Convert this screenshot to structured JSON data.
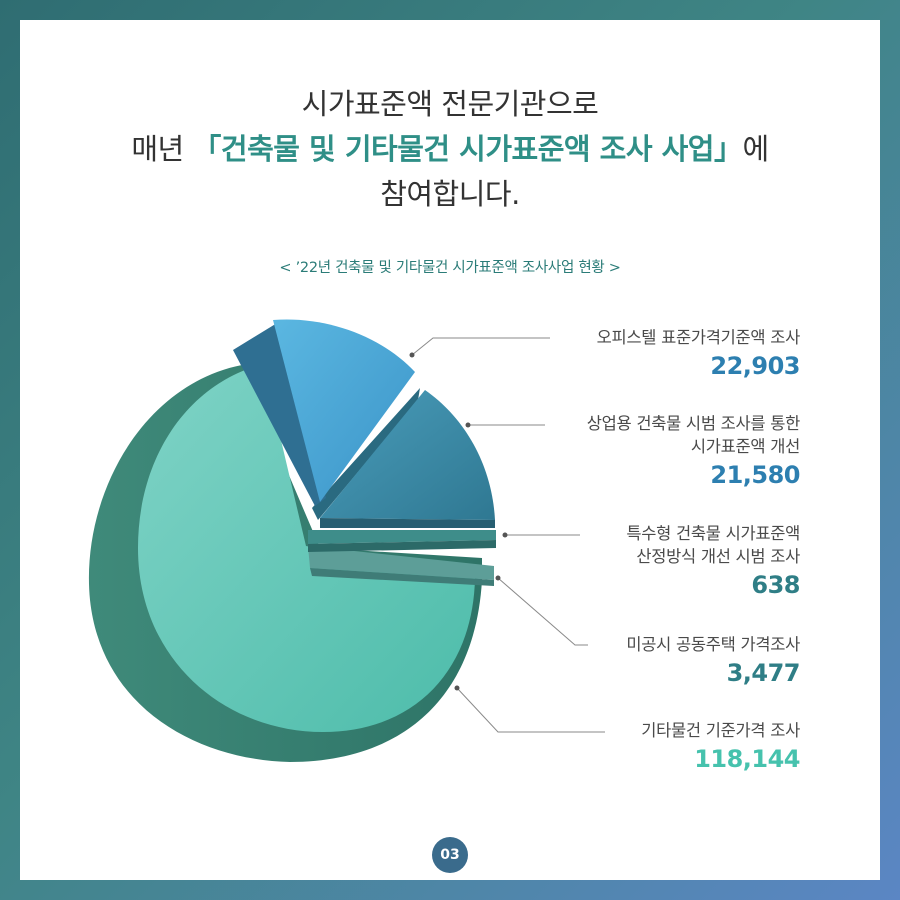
{
  "headline": {
    "line1": "시가표준액 전문기관으로",
    "line2_pre": "매년 ",
    "line2_emph": "「건축물 및 기타물건 시가표준액 조사 사업」",
    "line2_post": "에",
    "line3": "참여합니다."
  },
  "subtitle": "< ’22년 건축물 및 기타물건 시가표준액 조사사업 현황 >",
  "page_number": "03",
  "colors": {
    "accent": "#2f8f87",
    "slice_big": "#5cc5b4",
    "slice_blue": "#4aa6d6",
    "slice_steel": "#3b8aa3",
    "slice_teal_small": "#3e8d8a",
    "slice_grey_small": "#5d9e98",
    "number_blue": "#2d7fb0",
    "number_teal": "#2f7e86",
    "number_mint": "#46c2ad"
  },
  "chart_data": {
    "type": "pie",
    "title": "< ’22년 건축물 및 기타물건 시가표준액 조사사업 현황 >",
    "style": "exploded 3D pie",
    "slices": [
      {
        "label": "오피스텔 표준가격기준액 조사",
        "value": 22903,
        "display": "22,903"
      },
      {
        "label_lines": [
          "상업용 건축물 시범 조사를 통한",
          "시가표준액 개선"
        ],
        "label": "상업용 건축물 시범 조사를 통한 시가표준액 개선",
        "value": 21580,
        "display": "21,580"
      },
      {
        "label_lines": [
          "특수형 건축물 시가표준액",
          "산정방식 개선 시범 조사"
        ],
        "label": "특수형 건축물 시가표준액 산정방식 개선 시범 조사",
        "value": 638,
        "display": "638"
      },
      {
        "label": "미공시 공동주택 가격조사",
        "value": 3477,
        "display": "3,477"
      },
      {
        "label": "기타물건 기준가격 조사",
        "value": 118144,
        "display": "118,144"
      }
    ]
  }
}
